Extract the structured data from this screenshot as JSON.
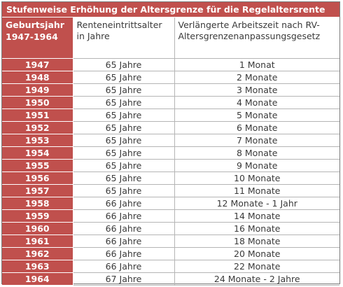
{
  "title": "Stufenweise Erhöhung der Altersgrenze für die Regelaltersrente",
  "headers": {
    "year": "Geburtsjahr 1947-1964",
    "age": "Renteneintrittsalter in Jahre",
    "extension": "Verlängerte Arbeitszeit nach RV-Altersgrenzenanpassungsgesetz"
  },
  "rows": [
    {
      "year": "1947",
      "age": "65 Jahre",
      "extension": "1 Monat"
    },
    {
      "year": "1948",
      "age": "65 Jahre",
      "extension": "2 Monate"
    },
    {
      "year": "1949",
      "age": "65 Jahre",
      "extension": "3 Monate"
    },
    {
      "year": "1950",
      "age": "65 Jahre",
      "extension": "4 Monate"
    },
    {
      "year": "1951",
      "age": "65 Jahre",
      "extension": "5 Monate"
    },
    {
      "year": "1952",
      "age": "65 Jahre",
      "extension": "6 Monate"
    },
    {
      "year": "1953",
      "age": "65 Jahre",
      "extension": "7 Monate"
    },
    {
      "year": "1954",
      "age": "65 Jahre",
      "extension": "8 Monate"
    },
    {
      "year": "1955",
      "age": "65 Jahre",
      "extension": "9 Monate"
    },
    {
      "year": "1956",
      "age": "65 Jahre",
      "extension": "10 Monate"
    },
    {
      "year": "1957",
      "age": "65 Jahre",
      "extension": "11 Monate"
    },
    {
      "year": "1958",
      "age": "66 Jahre",
      "extension": "12 Monate - 1 Jahr"
    },
    {
      "year": "1959",
      "age": "66 Jahre",
      "extension": "14 Monate"
    },
    {
      "year": "1960",
      "age": "66 Jahre",
      "extension": "16 Monate"
    },
    {
      "year": "1961",
      "age": "66 Jahre",
      "extension": "18 Monate"
    },
    {
      "year": "1962",
      "age": "66 Jahre",
      "extension": "20 Monate"
    },
    {
      "year": "1963",
      "age": "66 Jahre",
      "extension": "22 Monate"
    },
    {
      "year": "1964",
      "age": "67 Jahre",
      "extension": "24 Monate - 2 Jahre"
    }
  ],
  "colors": {
    "accent": "#c0504d",
    "text": "#3a3a3a",
    "grid": "#b5b5b5"
  }
}
